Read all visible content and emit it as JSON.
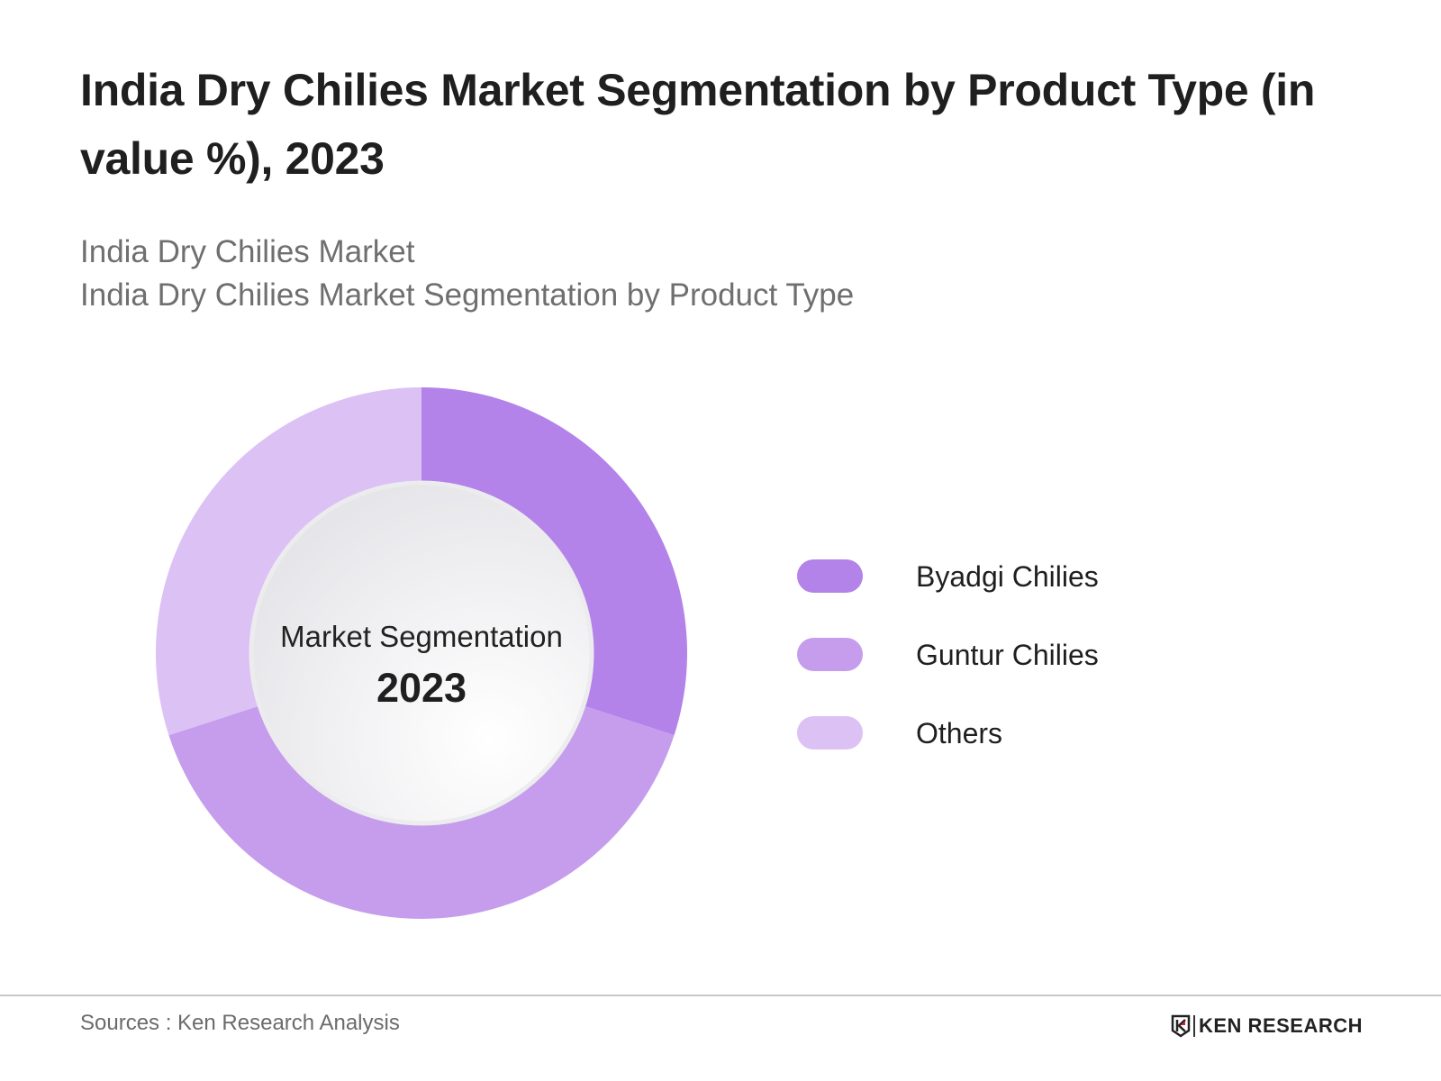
{
  "header": {
    "title": "India Dry Chilies Market Segmentation by Product Type (in value %), 2023",
    "subtitle_1": "India Dry Chilies Market",
    "subtitle_2": "India Dry Chilies Market Segmentation by Product Type"
  },
  "center": {
    "label": "Market Segmentation",
    "year": "2023"
  },
  "legend": [
    {
      "label": "Byadgi Chilies",
      "color": "#b383ea"
    },
    {
      "label": "Guntur Chilies",
      "color": "#c69ded"
    },
    {
      "label": "Others",
      "color": "#dcc1f5"
    }
  ],
  "footer": {
    "sources": "Sources : Ken Research Analysis",
    "logo_text": "KEN RESEARCH"
  },
  "chart_data": {
    "type": "pie",
    "variant": "donut",
    "title": "India Dry Chilies Market Segmentation by Product Type (in value %), 2023",
    "subtitle": "India Dry Chilies Market Segmentation by Product Type",
    "center_text": [
      "Market Segmentation",
      "2023"
    ],
    "categories": [
      "Byadgi Chilies",
      "Guntur Chilies",
      "Others"
    ],
    "values": [
      30,
      40,
      30
    ],
    "colors": [
      "#b383ea",
      "#c69ded",
      "#dcc1f5"
    ],
    "unit": "%",
    "legend_position": "right",
    "data_labels": false
  }
}
